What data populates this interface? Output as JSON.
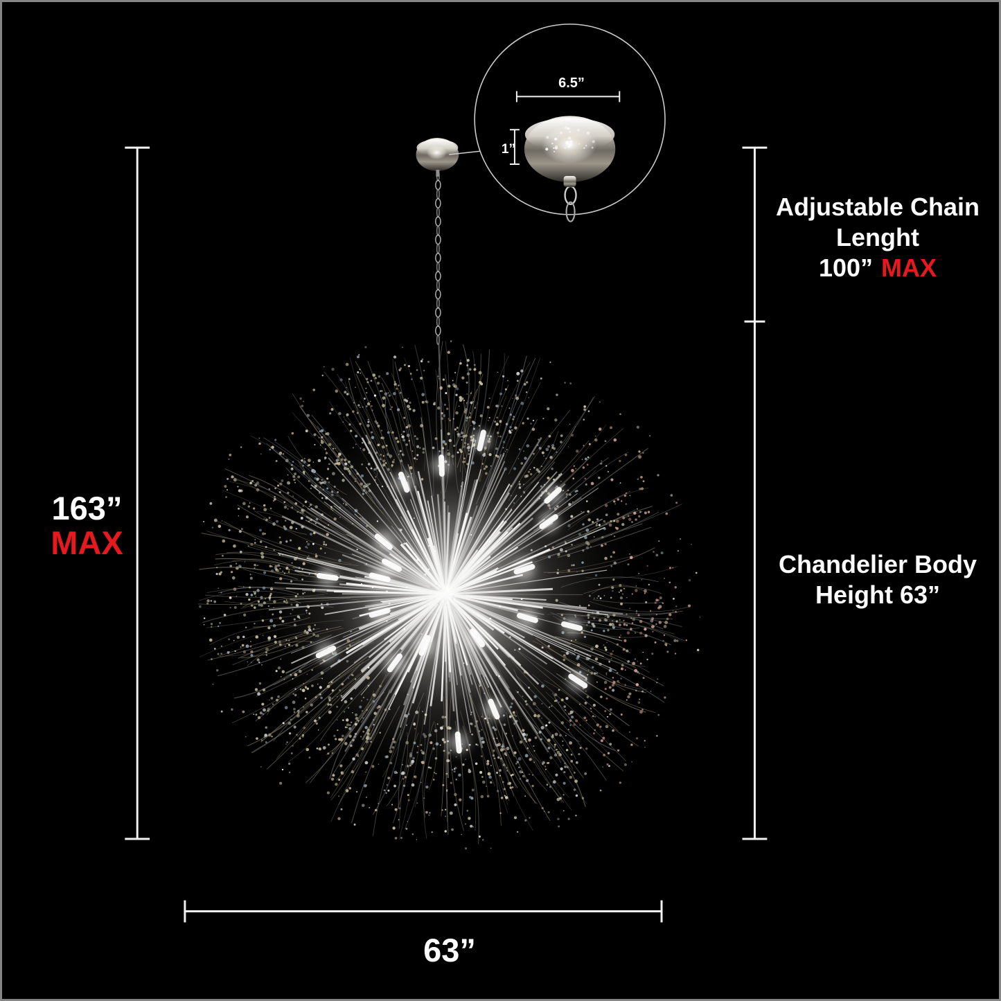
{
  "colors": {
    "background": "#000000",
    "frame": "#868686",
    "dimension_line": "#f2f2f2",
    "text": "#fdfdfd",
    "accent_red": "#e8191e"
  },
  "labels": {
    "overall_height": {
      "value": "163”",
      "qualifier": "MAX"
    },
    "chain": {
      "line1": "Adjustable Chain",
      "line2": "Lenght",
      "value": "100”",
      "qualifier": "MAX"
    },
    "body": {
      "line1": "Chandelier Body",
      "line2": "Height 63”"
    },
    "width": {
      "value": "63”"
    },
    "inset": {
      "canopy_width": "6.5”",
      "canopy_height": "1”"
    }
  }
}
